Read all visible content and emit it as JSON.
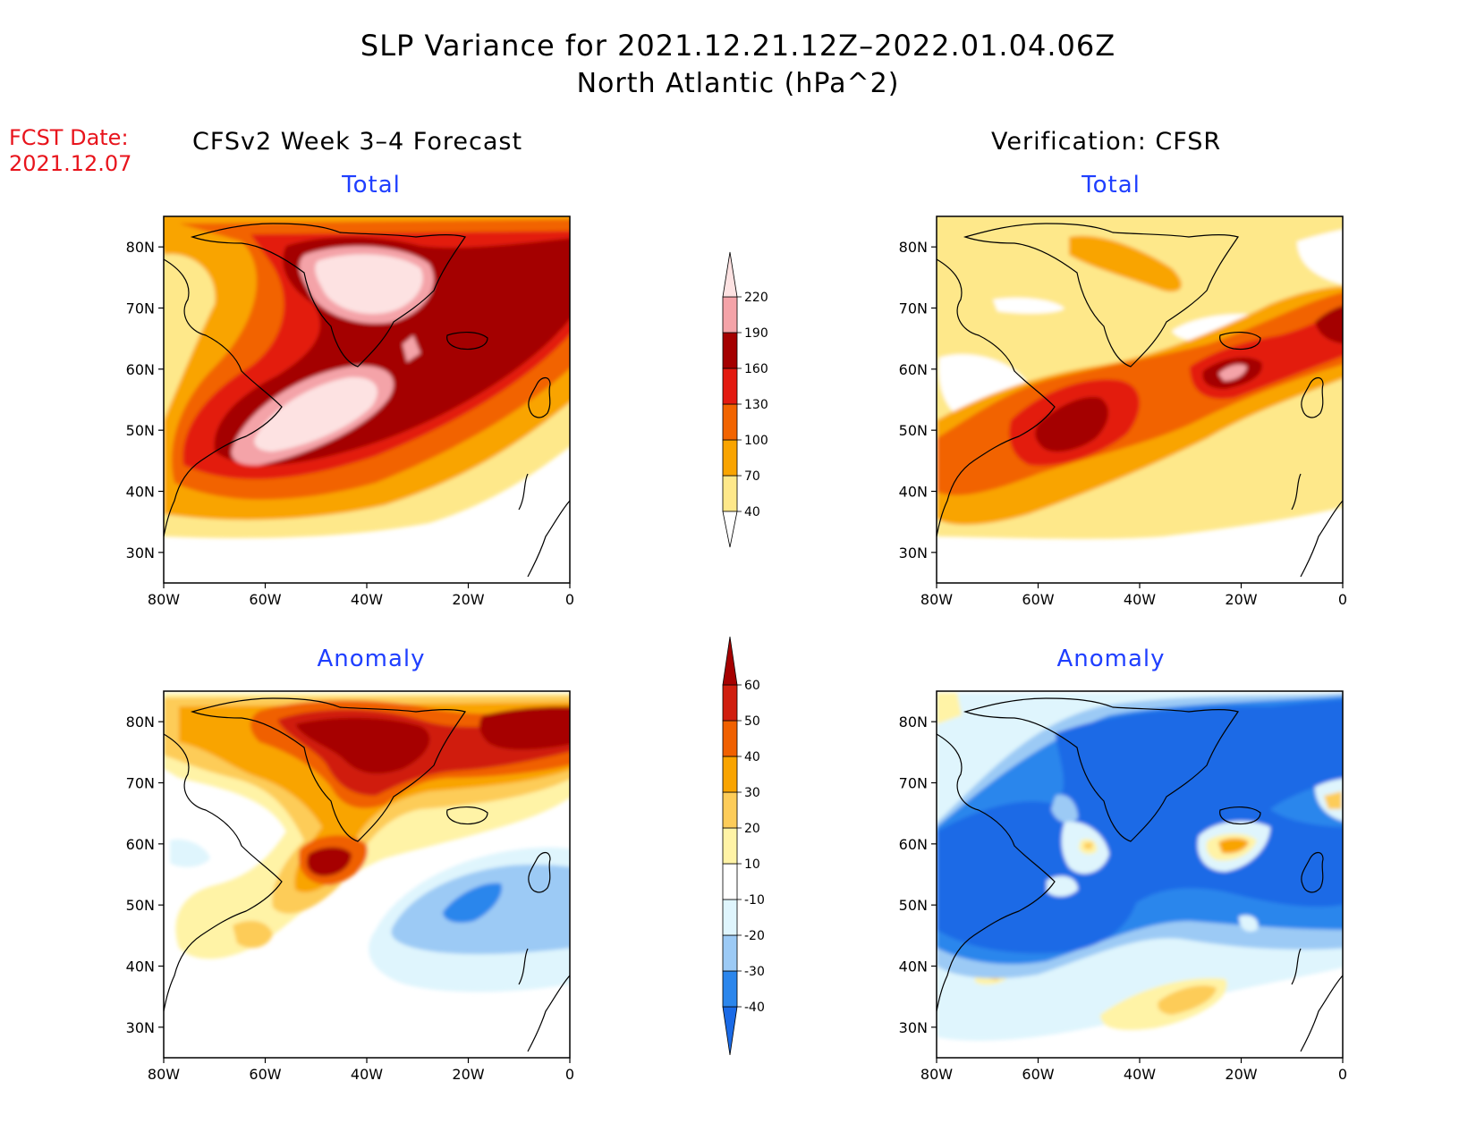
{
  "title": {
    "line1": "SLP Variance for 2021.12.21.12Z–2022.01.04.06Z",
    "line2": "North Atlantic (hPa^2)"
  },
  "forecast_date": {
    "label": "FCST Date:",
    "value": "2021.12.07"
  },
  "columns": {
    "left": "CFSv2 Week 3–4 Forecast",
    "right": "Verification: CFSR"
  },
  "panels": {
    "top_left": "Total",
    "top_right": "Total",
    "bottom_left": "Anomaly",
    "bottom_right": "Anomaly"
  },
  "axes": {
    "lat_ticks": [
      "80N",
      "70N",
      "60N",
      "50N",
      "40N",
      "30N"
    ],
    "lon_ticks": [
      "80W",
      "60W",
      "40W",
      "20W",
      "0"
    ]
  },
  "colorbars": {
    "total": {
      "levels": [
        "40",
        "70",
        "100",
        "130",
        "160",
        "190",
        "220"
      ],
      "colors": [
        "#fee88a",
        "#f9a400",
        "#f26400",
        "#e31a10",
        "#a40000",
        "#f4a3a8",
        "#fde2e2"
      ]
    },
    "anomaly": {
      "levels": [
        "-40",
        "-30",
        "-20",
        "-10",
        "10",
        "20",
        "30",
        "40",
        "50",
        "60"
      ],
      "colors": [
        "#1a6ae6",
        "#2b86ec",
        "#9ccaf5",
        "#dff5fd",
        "#ffffff",
        "#fff3a6",
        "#fdcc59",
        "#f9a400",
        "#f06000",
        "#d01e0e",
        "#a60000"
      ]
    }
  }
}
